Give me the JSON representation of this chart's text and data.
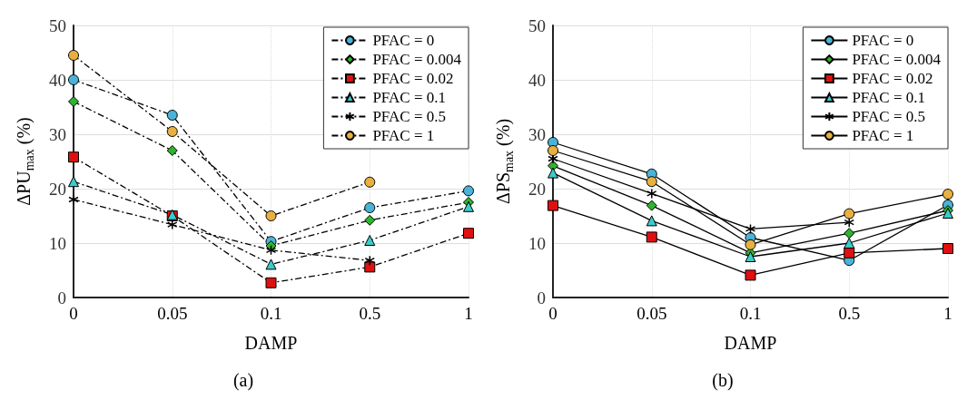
{
  "chart_data": [
    {
      "type": "line",
      "xlabel": "DAMP",
      "ylabel": "ΔPU$_{max}$ (%)",
      "categories": [
        "0",
        "0.05",
        "0.1",
        "0.5",
        "1"
      ],
      "ylim": [
        0,
        50
      ],
      "yticks": [
        0,
        10,
        20,
        30,
        40,
        50
      ],
      "grid": true,
      "legend": "top right",
      "line_style": "dashed",
      "annotations": [
        "(a)"
      ],
      "series": [
        {
          "name": "PFAC = 0",
          "color": "#4ab3d8",
          "marker": "circle",
          "values": [
            40,
            33.5,
            10.3,
            16.5,
            19.6
          ]
        },
        {
          "name": "PFAC = 0.004",
          "color": "#2db52d",
          "marker": "diamond",
          "values": [
            36,
            27,
            9.5,
            14.2,
            17.5
          ]
        },
        {
          "name": "PFAC = 0.02",
          "color": "#e01010",
          "marker": "square",
          "values": [
            25.8,
            15,
            2.7,
            5.6,
            11.8
          ]
        },
        {
          "name": "PFAC = 0.1",
          "color": "#3ccbcb",
          "marker": "triangle",
          "values": [
            21.3,
            15.2,
            6.1,
            10.5,
            16.7
          ]
        },
        {
          "name": "PFAC = 0.5",
          "color": "#000000",
          "marker": "cross",
          "values": [
            18,
            13.4,
            8.7,
            6.8,
            null
          ]
        },
        {
          "name": "PFAC = 1",
          "color": "#e8b040",
          "marker": "circle",
          "values": [
            44.5,
            30.5,
            15,
            21.2,
            null
          ]
        }
      ]
    },
    {
      "type": "line",
      "xlabel": "DAMP",
      "ylabel": "ΔPS$_{max}$ (%)",
      "categories": [
        "0",
        "0.05",
        "0.1",
        "0.5",
        "1"
      ],
      "ylim": [
        0,
        50
      ],
      "yticks": [
        0,
        10,
        20,
        30,
        40,
        50
      ],
      "grid": true,
      "legend": "top right",
      "line_style": "solid",
      "annotations": [
        "(b)"
      ],
      "series": [
        {
          "name": "PFAC = 0",
          "color": "#4ab3d8",
          "marker": "circle",
          "values": [
            28.5,
            22.7,
            11,
            6.8,
            17
          ]
        },
        {
          "name": "PFAC = 0.004",
          "color": "#2db52d",
          "marker": "diamond",
          "values": [
            24.2,
            16.9,
            8.2,
            11.8,
            16
          ]
        },
        {
          "name": "PFAC = 0.02",
          "color": "#e01010",
          "marker": "square",
          "values": [
            16.9,
            11.1,
            4.1,
            8.2,
            9
          ]
        },
        {
          "name": "PFAC = 0.1",
          "color": "#3ccbcb",
          "marker": "triangle",
          "values": [
            22.9,
            14.1,
            7.5,
            10,
            15.5
          ]
        },
        {
          "name": "PFAC = 0.5",
          "color": "#000000",
          "marker": "cross",
          "values": [
            25.5,
            19.1,
            12.6,
            13.8,
            null
          ]
        },
        {
          "name": "PFAC = 1",
          "color": "#e8b040",
          "marker": "circle",
          "values": [
            27,
            21.3,
            9.7,
            15.4,
            19
          ]
        }
      ]
    }
  ]
}
